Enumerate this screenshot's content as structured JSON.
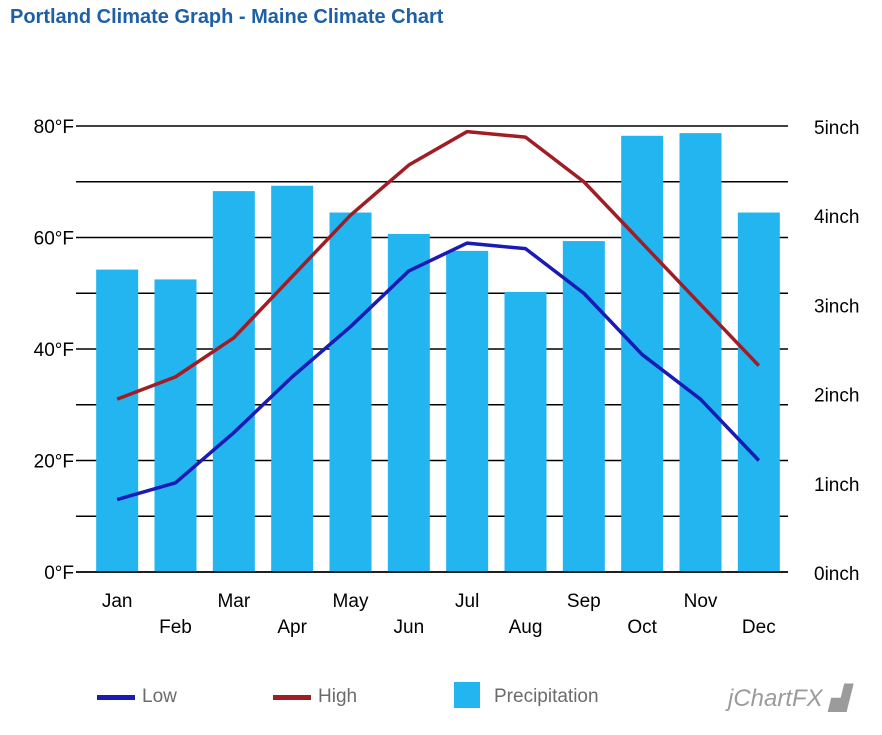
{
  "title": "Portland Climate Graph - Maine Climate Chart",
  "watermark": "jChartFX",
  "chart_data": {
    "type": "bar",
    "title": "Portland Climate Graph - Maine Climate Chart",
    "categories": [
      "Jan",
      "Feb",
      "Mar",
      "Apr",
      "May",
      "Jun",
      "Jul",
      "Aug",
      "Sep",
      "Oct",
      "Nov",
      "Dec"
    ],
    "left_axis": {
      "unit": "°F",
      "range": [
        0,
        80
      ],
      "ticks": [
        "0°F",
        "20°F",
        "40°F",
        "60°F",
        "80°F"
      ]
    },
    "right_axis": {
      "unit": "inch",
      "range": [
        0,
        5
      ],
      "ticks": [
        "0inch",
        "1inch",
        "2inch",
        "3inch",
        "4inch",
        "5inch"
      ]
    },
    "series": [
      {
        "name": "Low",
        "type": "line",
        "axis": "left",
        "color": "#1a1ab4",
        "values": [
          13,
          16,
          25,
          35,
          44,
          54,
          59,
          58,
          50,
          39,
          31,
          20
        ]
      },
      {
        "name": "High",
        "type": "line",
        "axis": "left",
        "color": "#a11d25",
        "values": [
          31,
          35,
          42,
          53,
          64,
          73,
          79,
          78,
          70,
          59,
          48,
          37
        ]
      },
      {
        "name": "Precipitation",
        "type": "bar",
        "axis": "right",
        "color": "#22b5ef",
        "values": [
          3.39,
          3.28,
          4.27,
          4.33,
          4.03,
          3.79,
          3.6,
          3.14,
          3.71,
          4.89,
          4.92,
          4.03
        ]
      }
    ],
    "grid": true,
    "legend_position": "bottom"
  }
}
